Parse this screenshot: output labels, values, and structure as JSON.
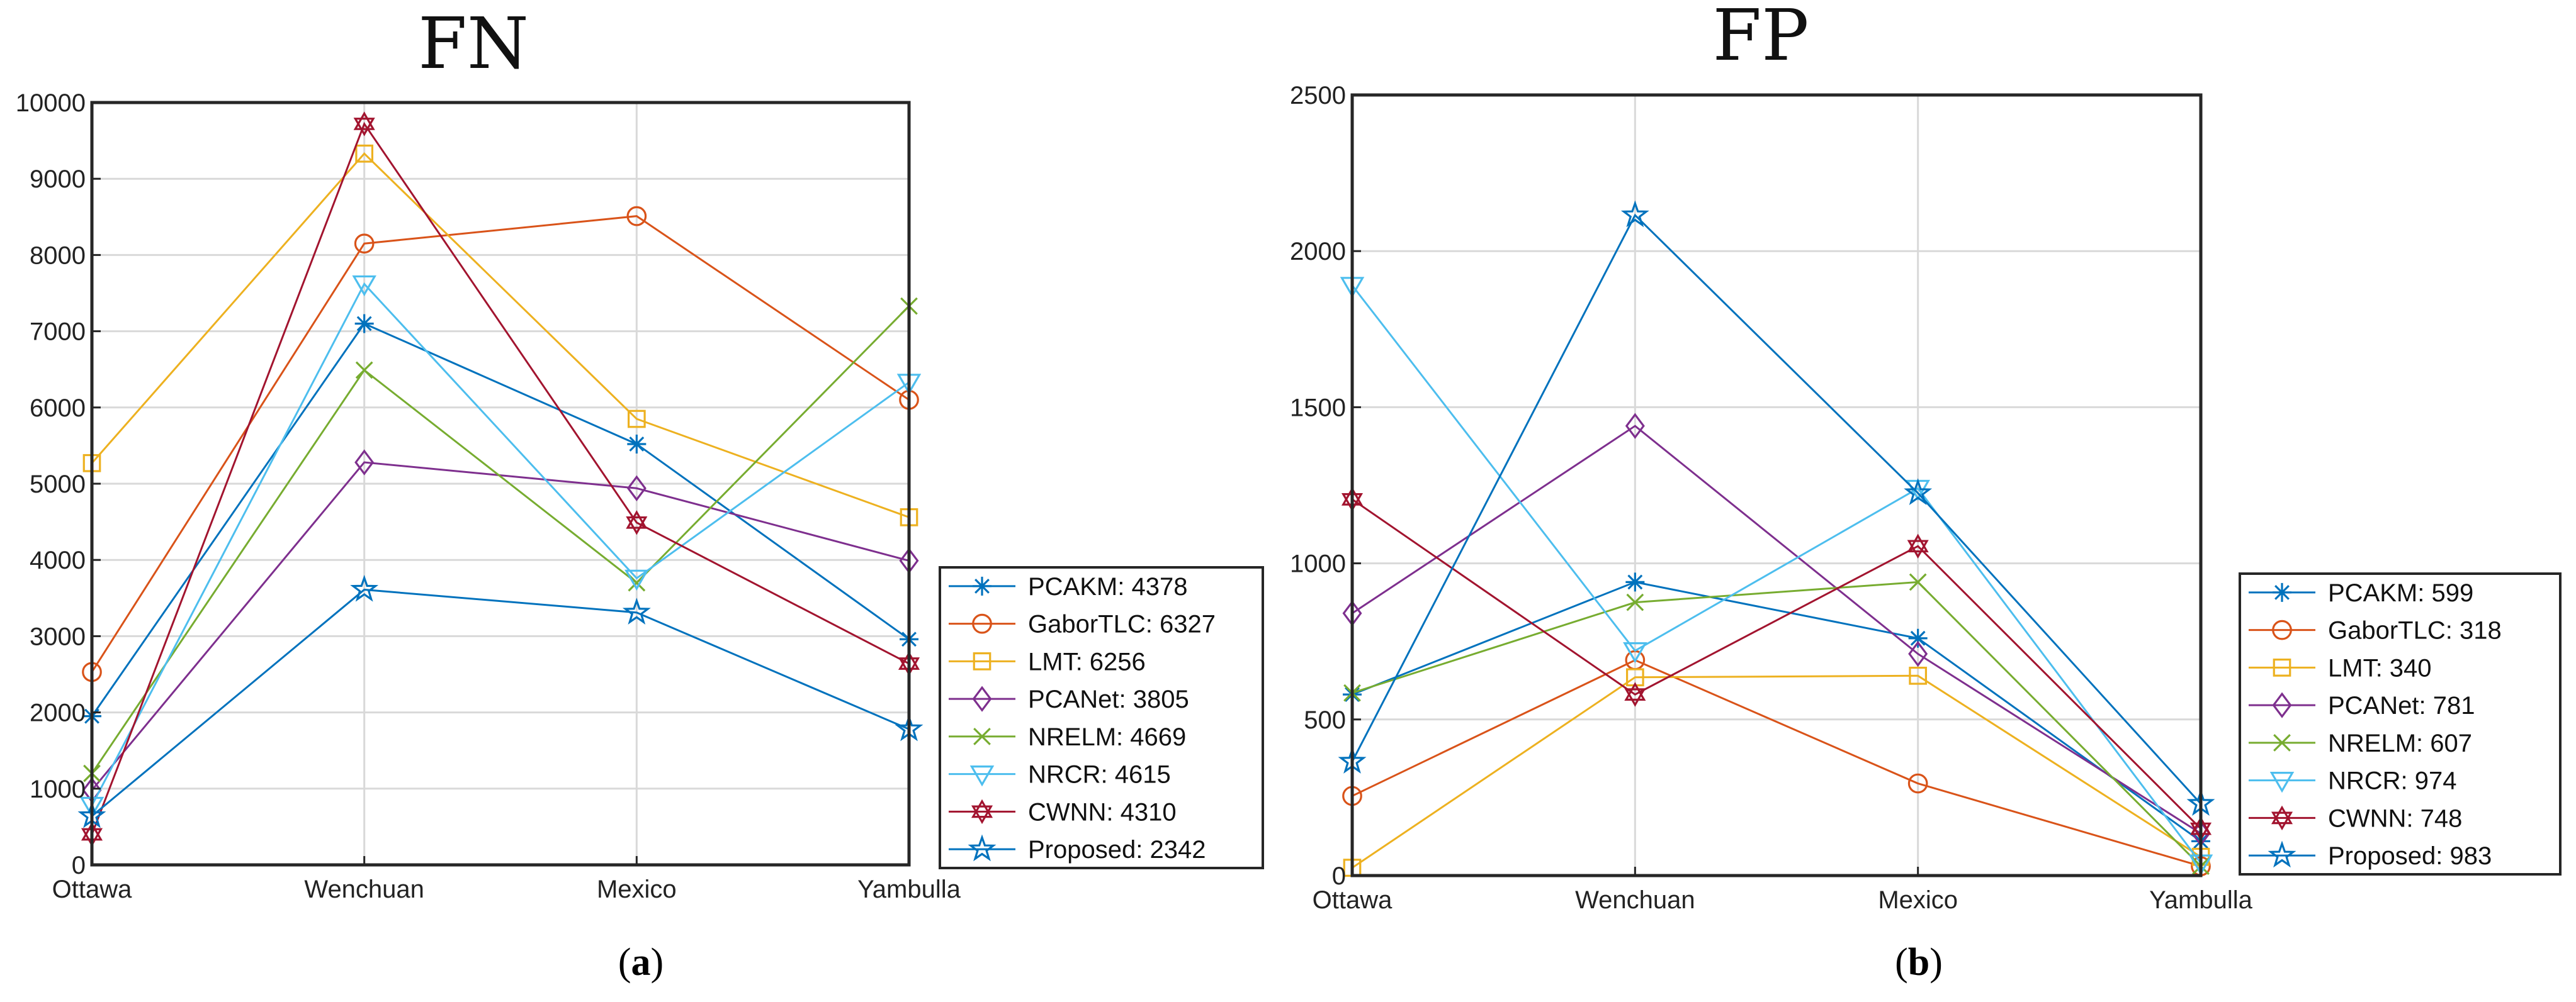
{
  "chart_data": [
    {
      "type": "line",
      "id": "fn",
      "title": "FN",
      "caption_open": "(",
      "caption_letter": "a",
      "caption_close": ")",
      "categories": [
        "Ottawa",
        "Wenchuan",
        "Mexico",
        "Yambulla"
      ],
      "ylim": [
        0,
        10000
      ],
      "yticks": [
        0,
        1000,
        2000,
        3000,
        4000,
        5000,
        6000,
        7000,
        8000,
        9000,
        10000
      ],
      "grid": true,
      "legend_position": "right",
      "series": [
        {
          "name": "PCAKM",
          "total": 4378,
          "legend_label": "PCAKM: 4378",
          "color": "#0072BD",
          "marker": "asterisk",
          "values": [
            1950,
            7100,
            5520,
            2960
          ]
        },
        {
          "name": "GaborTLC",
          "total": 6327,
          "legend_label": "GaborTLC: 6327",
          "color": "#D95319",
          "marker": "circle",
          "values": [
            2530,
            8150,
            8510,
            6100
          ]
        },
        {
          "name": "LMT",
          "total": 6256,
          "legend_label": "LMT: 6256",
          "color": "#EDB120",
          "marker": "square",
          "values": [
            5270,
            9330,
            5850,
            4560
          ]
        },
        {
          "name": "PCANet",
          "total": 3805,
          "legend_label": "PCANet: 3805",
          "color": "#7E2F8E",
          "marker": "diamond",
          "values": [
            980,
            5280,
            4940,
            3990
          ]
        },
        {
          "name": "NRELM",
          "total": 4669,
          "legend_label": "NRELM: 4669",
          "color": "#77AC30",
          "marker": "x",
          "values": [
            1200,
            6490,
            3700,
            7330
          ]
        },
        {
          "name": "NRCR",
          "total": 4615,
          "legend_label": "NRCR: 4615",
          "color": "#4DBEEE",
          "marker": "triangle-down",
          "values": [
            780,
            7620,
            3760,
            6330
          ]
        },
        {
          "name": "CWNN",
          "total": 4310,
          "legend_label": "CWNN: 4310",
          "color": "#A2142F",
          "marker": "hexagram",
          "values": [
            400,
            9720,
            4490,
            2640
          ]
        },
        {
          "name": "Proposed",
          "total": 2342,
          "legend_label": "Proposed: 2342",
          "color": "#0072BD",
          "marker": "pentagram",
          "values": [
            640,
            3610,
            3310,
            1780
          ]
        }
      ]
    },
    {
      "type": "line",
      "id": "fp",
      "title": "FP",
      "caption_open": "(",
      "caption_letter": "b",
      "caption_close": ")",
      "categories": [
        "Ottawa",
        "Wenchuan",
        "Mexico",
        "Yambulla"
      ],
      "ylim": [
        0,
        2500
      ],
      "yticks": [
        0,
        500,
        1000,
        1500,
        2000,
        2500
      ],
      "grid": true,
      "legend_position": "right",
      "series": [
        {
          "name": "PCAKM",
          "total": 599,
          "legend_label": "PCAKM: 599",
          "color": "#0072BD",
          "marker": "asterisk",
          "values": [
            580,
            940,
            760,
            110
          ]
        },
        {
          "name": "GaborTLC",
          "total": 318,
          "legend_label": "GaborTLC: 318",
          "color": "#D95319",
          "marker": "circle",
          "values": [
            255,
            690,
            295,
            30
          ]
        },
        {
          "name": "LMT",
          "total": 340,
          "legend_label": "LMT: 340",
          "color": "#EDB120",
          "marker": "square",
          "values": [
            25,
            635,
            640,
            60
          ]
        },
        {
          "name": "PCANet",
          "total": 781,
          "legend_label": "PCANet: 781",
          "color": "#7E2F8E",
          "marker": "diamond",
          "values": [
            840,
            1440,
            710,
            135
          ]
        },
        {
          "name": "NRELM",
          "total": 607,
          "legend_label": "NRELM: 607",
          "color": "#77AC30",
          "marker": "x",
          "values": [
            585,
            875,
            940,
            30
          ]
        },
        {
          "name": "NRCR",
          "total": 974,
          "legend_label": "NRCR: 974",
          "color": "#4DBEEE",
          "marker": "triangle-down",
          "values": [
            1890,
            720,
            1240,
            40
          ]
        },
        {
          "name": "CWNN",
          "total": 748,
          "legend_label": "CWNN: 748",
          "color": "#A2142F",
          "marker": "hexagram",
          "values": [
            1205,
            580,
            1055,
            150
          ]
        },
        {
          "name": "Proposed",
          "total": 983,
          "legend_label": "Proposed: 983",
          "color": "#0072BD",
          "marker": "pentagram",
          "values": [
            365,
            2115,
            1225,
            230
          ]
        }
      ]
    }
  ]
}
